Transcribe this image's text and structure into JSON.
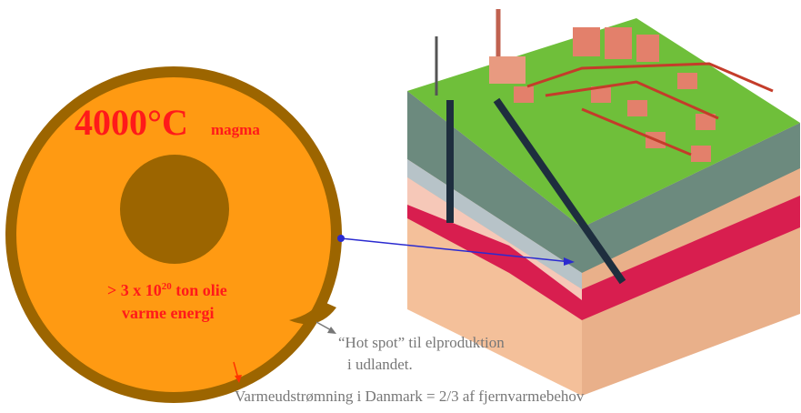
{
  "core": {
    "temperature": "4000°C",
    "label": "magma",
    "energy_prefix": "> 3 x 10",
    "energy_exponent": "20",
    "energy_suffix": " ton olie",
    "energy_line2": "varme energi"
  },
  "hot_spot": {
    "line1": "“Hot spot” til elproduktion",
    "line2": "i udlandet."
  },
  "footer": "Varmeudstrømning i Danmark = 2/3 af fjernvarmebehov"
}
